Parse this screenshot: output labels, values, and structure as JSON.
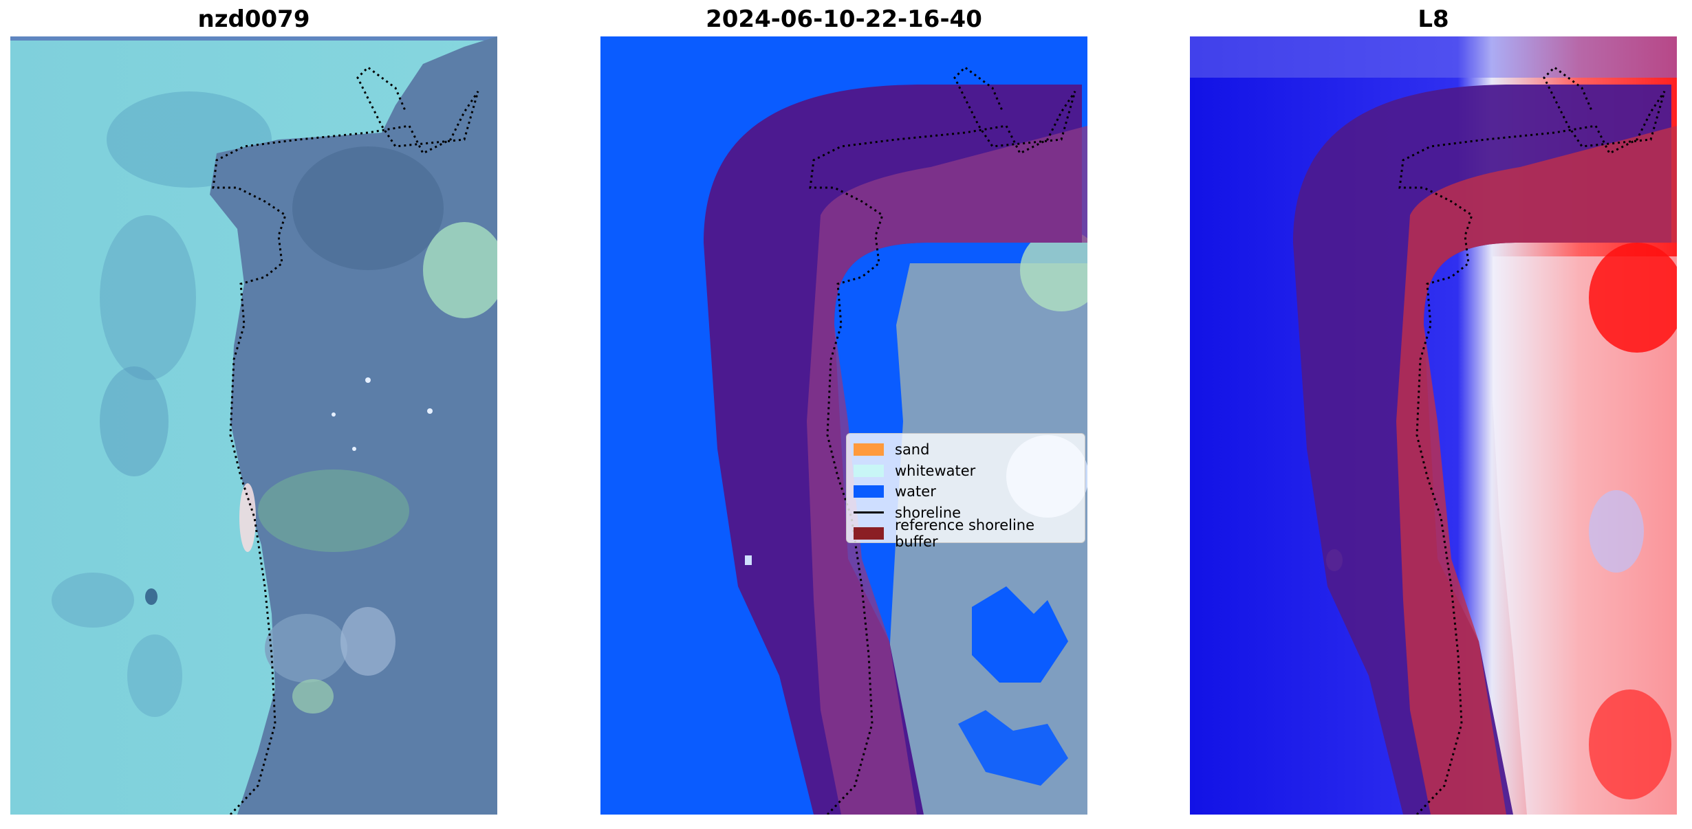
{
  "panels": [
    {
      "title": "nzd0079"
    },
    {
      "title": "2024-06-10-22-16-40"
    },
    {
      "title": "L8"
    }
  ],
  "legend": {
    "items": [
      {
        "label": "sand",
        "kind": "patch",
        "color": "#ff9a3c"
      },
      {
        "label": "whitewater",
        "kind": "patch",
        "color": "#c8f6f6"
      },
      {
        "label": "water",
        "kind": "patch",
        "color": "#0a5cff"
      },
      {
        "label": "shoreline",
        "kind": "line",
        "color": "#000000"
      },
      {
        "label": "reference shoreline buffer",
        "kind": "patch",
        "color": "#8b1e24"
      }
    ]
  },
  "colors": {
    "sea": "#7ccfda",
    "land": "#5b7fa6",
    "classified_water": "#0a5cff",
    "buffer": "#4c1a90",
    "l8_water": "#1010e8",
    "l8_land": "#e02030"
  }
}
